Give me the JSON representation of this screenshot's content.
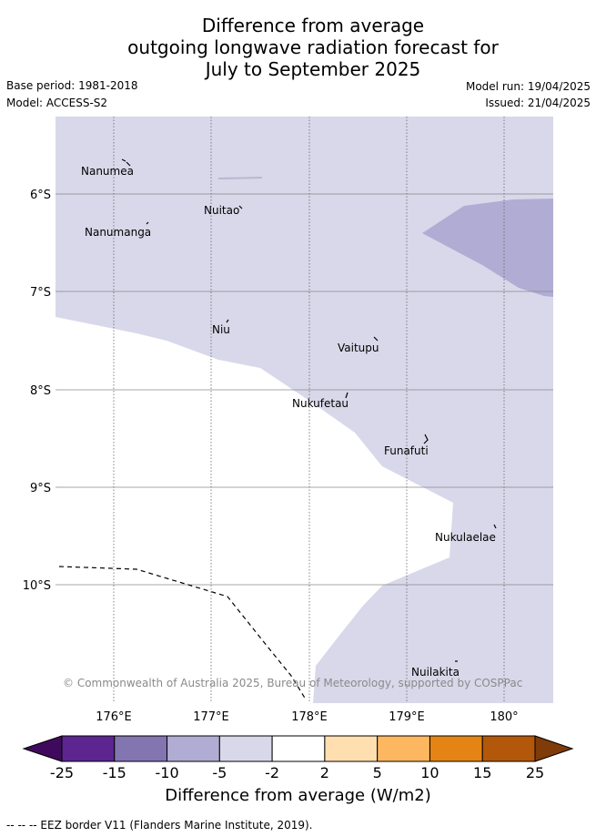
{
  "title": {
    "line1": "Difference from average",
    "line2": "outgoing longwave radiation forecast for",
    "line3": "July to September 2025"
  },
  "meta": {
    "base_period": "Base period: 1981-2018",
    "model": "Model: ACCESS-S2",
    "model_run": "Model run: 19/04/2025",
    "issued": "Issued: 21/04/2025"
  },
  "map": {
    "lat_labels": [
      "6°S",
      "7°S",
      "8°S",
      "9°S",
      "10°S"
    ],
    "lon_labels": [
      "176°E",
      "177°E",
      "178°E",
      "179°E",
      "180°"
    ],
    "places": [
      "Nanumea",
      "Nuitao",
      "Nanumanga",
      "Niu",
      "Vaitupu",
      "Nukufetau",
      "Funafuti",
      "Nukulaelae",
      "Nuilakita"
    ],
    "copyright": "© Commonwealth of Australia 2025, Bureau of Meteorology, supported by COSPPac"
  },
  "colorbar": {
    "ticks": [
      "-25",
      "-15",
      "-10",
      "-5",
      "-2",
      "2",
      "5",
      "10",
      "15",
      "25"
    ],
    "colors": [
      "#3f0a5e",
      "#5c2590",
      "#8275b0",
      "#b1acd3",
      "#d8d8ea",
      "#ffffff",
      "#ffdfb0",
      "#fdb760",
      "#e38415",
      "#b3570a",
      "#7f3b08"
    ],
    "label": "Difference from average (W/m2)"
  },
  "legend": {
    "eez": "-- -- -- EEZ border V11 (Flanders Marine Institute, 2019)."
  }
}
